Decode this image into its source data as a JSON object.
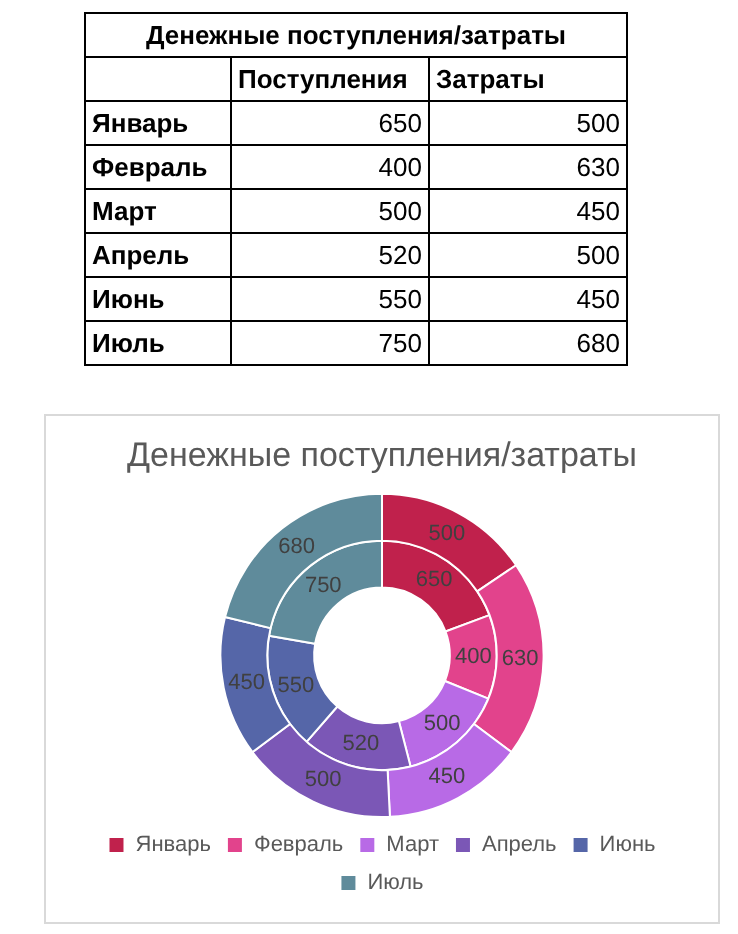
{
  "chart_data": [
    {
      "type": "other",
      "title": "Денежные поступления/затраты",
      "categories": [
        "Январь",
        "Февраль",
        "Март",
        "Апрель",
        "Июнь",
        "Июль"
      ],
      "series": [
        {
          "name": "Поступления",
          "values": [
            650,
            400,
            500,
            520,
            550,
            750
          ]
        },
        {
          "name": "Затраты",
          "values": [
            500,
            630,
            450,
            500,
            450,
            680
          ]
        }
      ],
      "data_labels": true
    },
    {
      "type": "donut",
      "title": "Денежные поступления/затраты",
      "categories": [
        "Январь",
        "Февраль",
        "Март",
        "Апрель",
        "Июнь",
        "Июль"
      ],
      "colors": [
        "#c0214c",
        "#e2438c",
        "#b86ae6",
        "#7b57b6",
        "#5566a8",
        "#5f8b9b"
      ],
      "series": [
        {
          "values": [
            650,
            400,
            500,
            520,
            550,
            750
          ]
        },
        {
          "values": [
            500,
            630,
            450,
            500,
            450,
            680
          ]
        }
      ],
      "data_labels": true,
      "legend": "bottom"
    }
  ]
}
